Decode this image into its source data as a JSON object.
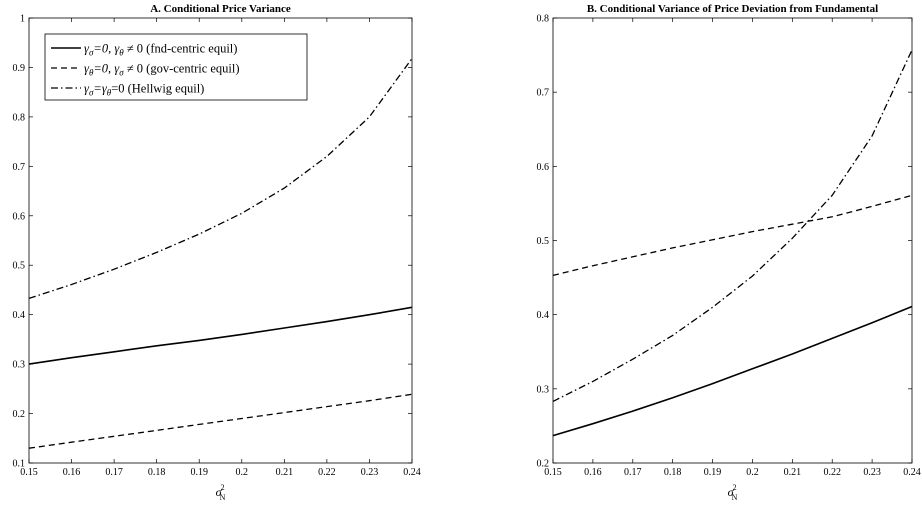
{
  "chart_data": [
    {
      "type": "line",
      "title": "A. Conditional Price Variance",
      "xlabel": "σ²N",
      "ylabel": "",
      "xlim": [
        0.15,
        0.24
      ],
      "ylim": [
        0.1,
        1.0
      ],
      "xticks": [
        0.15,
        0.16,
        0.17,
        0.18,
        0.19,
        0.2,
        0.21,
        0.22,
        0.23,
        0.24
      ],
      "xtick_labels": [
        "0.15",
        "0.16",
        "0.17",
        "0.18",
        "0.19",
        "0.2",
        "0.21",
        "0.22",
        "0.23",
        "0.24"
      ],
      "yticks": [
        0.1,
        0.2,
        0.3,
        0.4,
        0.5,
        0.6,
        0.7,
        0.8,
        0.9,
        1.0
      ],
      "ytick_labels": [
        "0.1",
        "0.2",
        "0.3",
        "0.4",
        "0.5",
        "0.6",
        "0.7",
        "0.8",
        "0.9",
        "1"
      ],
      "grid": false,
      "legend_position": "top-left",
      "x": [
        0.15,
        0.16,
        0.17,
        0.18,
        0.19,
        0.2,
        0.21,
        0.22,
        0.23,
        0.24
      ],
      "series": [
        {
          "name": "γσ=0, γθ ≠ 0 (fnd-centric equil)",
          "legend_parts": [
            "γ",
            "σ",
            "=0, γ",
            "θ",
            " ≠ 0 (fnd-centric equil)"
          ],
          "style": "solid",
          "values": [
            0.3,
            0.313,
            0.325,
            0.337,
            0.348,
            0.36,
            0.373,
            0.386,
            0.4,
            0.415
          ]
        },
        {
          "name": "γθ=0, γσ ≠ 0 (gov-centric equil)",
          "legend_parts": [
            "γ",
            "θ",
            "=0, γ",
            "σ",
            " ≠ 0 (gov-centric equil)"
          ],
          "style": "dashed",
          "values": [
            0.13,
            0.142,
            0.154,
            0.166,
            0.178,
            0.19,
            0.202,
            0.214,
            0.226,
            0.239
          ]
        },
        {
          "name": "γσ=γθ=0 (Hellwig equil)",
          "legend_parts": [
            "γ",
            "σ",
            "=γ",
            "θ",
            "=0 (Hellwig equil)"
          ],
          "style": "dashdot",
          "values": [
            0.433,
            0.461,
            0.492,
            0.526,
            0.563,
            0.605,
            0.656,
            0.72,
            0.8,
            0.918
          ]
        }
      ]
    },
    {
      "type": "line",
      "title": "B. Conditional Variance of Price Deviation from Fundamental",
      "xlabel": "σ²N",
      "ylabel": "",
      "xlim": [
        0.15,
        0.24
      ],
      "ylim": [
        0.2,
        0.8
      ],
      "xticks": [
        0.15,
        0.16,
        0.17,
        0.18,
        0.19,
        0.2,
        0.21,
        0.22,
        0.23,
        0.24
      ],
      "xtick_labels": [
        "0.15",
        "0.16",
        "0.17",
        "0.18",
        "0.19",
        "0.2",
        "0.21",
        "0.22",
        "0.23",
        "0.24"
      ],
      "yticks": [
        0.2,
        0.3,
        0.4,
        0.5,
        0.6,
        0.7,
        0.8
      ],
      "ytick_labels": [
        "0.2",
        "0.3",
        "0.4",
        "0.5",
        "0.6",
        "0.7",
        "0.8"
      ],
      "grid": false,
      "x": [
        0.15,
        0.16,
        0.17,
        0.18,
        0.19,
        0.2,
        0.21,
        0.22,
        0.23,
        0.24
      ],
      "series": [
        {
          "style": "solid",
          "values": [
            0.237,
            0.253,
            0.27,
            0.288,
            0.307,
            0.327,
            0.347,
            0.368,
            0.389,
            0.411
          ]
        },
        {
          "style": "dashed",
          "values": [
            0.453,
            0.466,
            0.478,
            0.49,
            0.501,
            0.512,
            0.522,
            0.532,
            0.546,
            0.561
          ]
        },
        {
          "style": "dashdot",
          "values": [
            0.283,
            0.31,
            0.34,
            0.372,
            0.41,
            0.452,
            0.503,
            0.561,
            0.641,
            0.757
          ]
        }
      ]
    }
  ]
}
